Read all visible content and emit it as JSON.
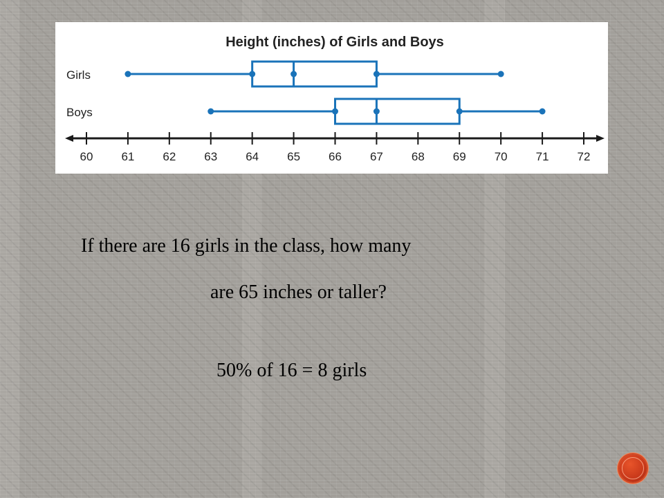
{
  "chart_data": {
    "type": "boxplot",
    "title": "Height (inches) of Girls and Boys",
    "xlim": [
      60,
      72
    ],
    "ticks": [
      60,
      61,
      62,
      63,
      64,
      65,
      66,
      67,
      68,
      69,
      70,
      71,
      72
    ],
    "series": [
      {
        "name": "Girls",
        "min": 61,
        "q1": 64,
        "median": 65,
        "q3": 67,
        "max": 70
      },
      {
        "name": "Boys",
        "min": 63,
        "q1": 66,
        "median": 67,
        "q3": 69,
        "max": 71
      }
    ],
    "colors": {
      "box": "#1a73b9",
      "axis": "#1a1a1a"
    }
  },
  "question": {
    "line1": "If there are 16 girls in the class, how many",
    "line2": "are 65 inches or taller?"
  },
  "answer": "50% of 16 = 8 girls",
  "nav": {
    "icon": "circle-nav-icon"
  }
}
